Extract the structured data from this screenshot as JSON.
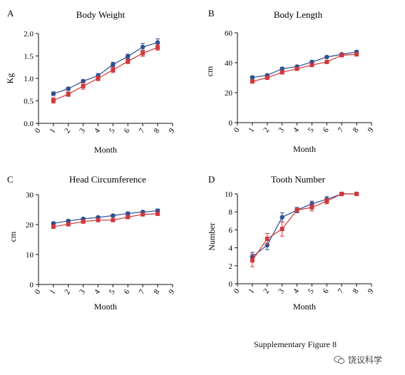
{
  "figure": {
    "caption": "Supplementary Figure 8",
    "watermark": "饶议科学",
    "colors": {
      "series_1": "#2f4f8f",
      "series_2": "#d0383b"
    }
  },
  "chart_data": [
    {
      "type": "line",
      "panel_label": "A",
      "title": "Body Weight",
      "xlabel": "Month",
      "ylabel": "Kg",
      "xlim": [
        0,
        9
      ],
      "ylim": [
        0,
        2.0
      ],
      "xticks": [
        0,
        1,
        2,
        3,
        4,
        5,
        6,
        7,
        8,
        9
      ],
      "yticks": [
        "0.0",
        "0.5",
        "1.0",
        "1.5",
        "2.0"
      ],
      "x": [
        1,
        2,
        3,
        4,
        5,
        6,
        7,
        8
      ],
      "series": [
        {
          "values": [
            0.66,
            0.77,
            0.94,
            1.06,
            1.31,
            1.49,
            1.7,
            1.8
          ],
          "errors": [
            0.04,
            0.03,
            0.03,
            0.05,
            0.05,
            0.05,
            0.08,
            0.08
          ]
        },
        {
          "values": [
            0.51,
            0.65,
            0.83,
            1.0,
            1.19,
            1.38,
            1.56,
            1.69
          ],
          "errors": [
            0.06,
            0.05,
            0.07,
            0.05,
            0.06,
            0.05,
            0.07,
            0.06
          ]
        }
      ]
    },
    {
      "type": "line",
      "panel_label": "B",
      "title": "Body Length",
      "xlabel": "Month",
      "ylabel": "cm",
      "xlim": [
        0,
        9
      ],
      "ylim": [
        0,
        60
      ],
      "xticks": [
        0,
        1,
        2,
        3,
        4,
        5,
        6,
        7,
        8,
        9
      ],
      "yticks": [
        "0",
        "20",
        "40",
        "60"
      ],
      "x": [
        1,
        2,
        3,
        4,
        5,
        6,
        7,
        8
      ],
      "series": [
        {
          "values": [
            30.2,
            31.6,
            36.0,
            37.4,
            40.5,
            43.8,
            45.6,
            47.2
          ],
          "errors": [
            0.8,
            0.8,
            0.8,
            0.8,
            0.8,
            0.8,
            0.8,
            0.8
          ]
        },
        {
          "values": [
            27.5,
            30.0,
            33.6,
            36.0,
            38.5,
            40.5,
            45.0,
            45.6
          ],
          "errors": [
            0.9,
            0.9,
            0.9,
            0.9,
            0.9,
            0.9,
            0.9,
            0.9
          ]
        }
      ]
    },
    {
      "type": "line",
      "panel_label": "C",
      "title": "Head Circumference",
      "xlabel": "Month",
      "ylabel": "cm",
      "xlim": [
        0,
        9
      ],
      "ylim": [
        0,
        30
      ],
      "xticks": [
        0,
        1,
        2,
        3,
        4,
        5,
        6,
        7,
        8,
        9
      ],
      "yticks": [
        "0",
        "10",
        "20",
        "30"
      ],
      "x": [
        1,
        2,
        3,
        4,
        5,
        6,
        7,
        8
      ],
      "series": [
        {
          "values": [
            20.4,
            21.2,
            21.9,
            22.4,
            23.0,
            23.7,
            24.2,
            24.6
          ],
          "errors": [
            0.4,
            0.4,
            0.4,
            0.4,
            0.4,
            0.4,
            0.4,
            0.6
          ]
        },
        {
          "values": [
            19.3,
            20.1,
            21.0,
            21.5,
            21.5,
            22.5,
            23.4,
            23.6
          ],
          "errors": [
            0.5,
            0.5,
            0.5,
            0.5,
            0.5,
            0.5,
            0.5,
            0.5
          ]
        }
      ]
    },
    {
      "type": "line",
      "panel_label": "D",
      "title": "Tooth Number",
      "xlabel": "Month",
      "ylabel": "Number",
      "xlim": [
        0,
        9
      ],
      "ylim": [
        0,
        10
      ],
      "xticks": [
        0,
        1,
        2,
        3,
        4,
        5,
        6,
        7,
        8,
        9
      ],
      "yticks": [
        "0",
        "2",
        "4",
        "6",
        "8",
        "10"
      ],
      "x": [
        1,
        2,
        3,
        4,
        5,
        6,
        7,
        8
      ],
      "series": [
        {
          "values": [
            3.0,
            4.3,
            7.4,
            8.2,
            8.9,
            9.4,
            10.0,
            10.0
          ],
          "errors": [
            0.5,
            0.5,
            0.5,
            0.3,
            0.3,
            0.3,
            0.1,
            0.1
          ]
        },
        {
          "values": [
            2.6,
            5.0,
            6.1,
            8.2,
            8.5,
            9.2,
            10.0,
            10.0
          ],
          "errors": [
            0.7,
            0.6,
            0.8,
            0.2,
            0.4,
            0.3,
            0.1,
            0.1
          ]
        }
      ]
    }
  ]
}
